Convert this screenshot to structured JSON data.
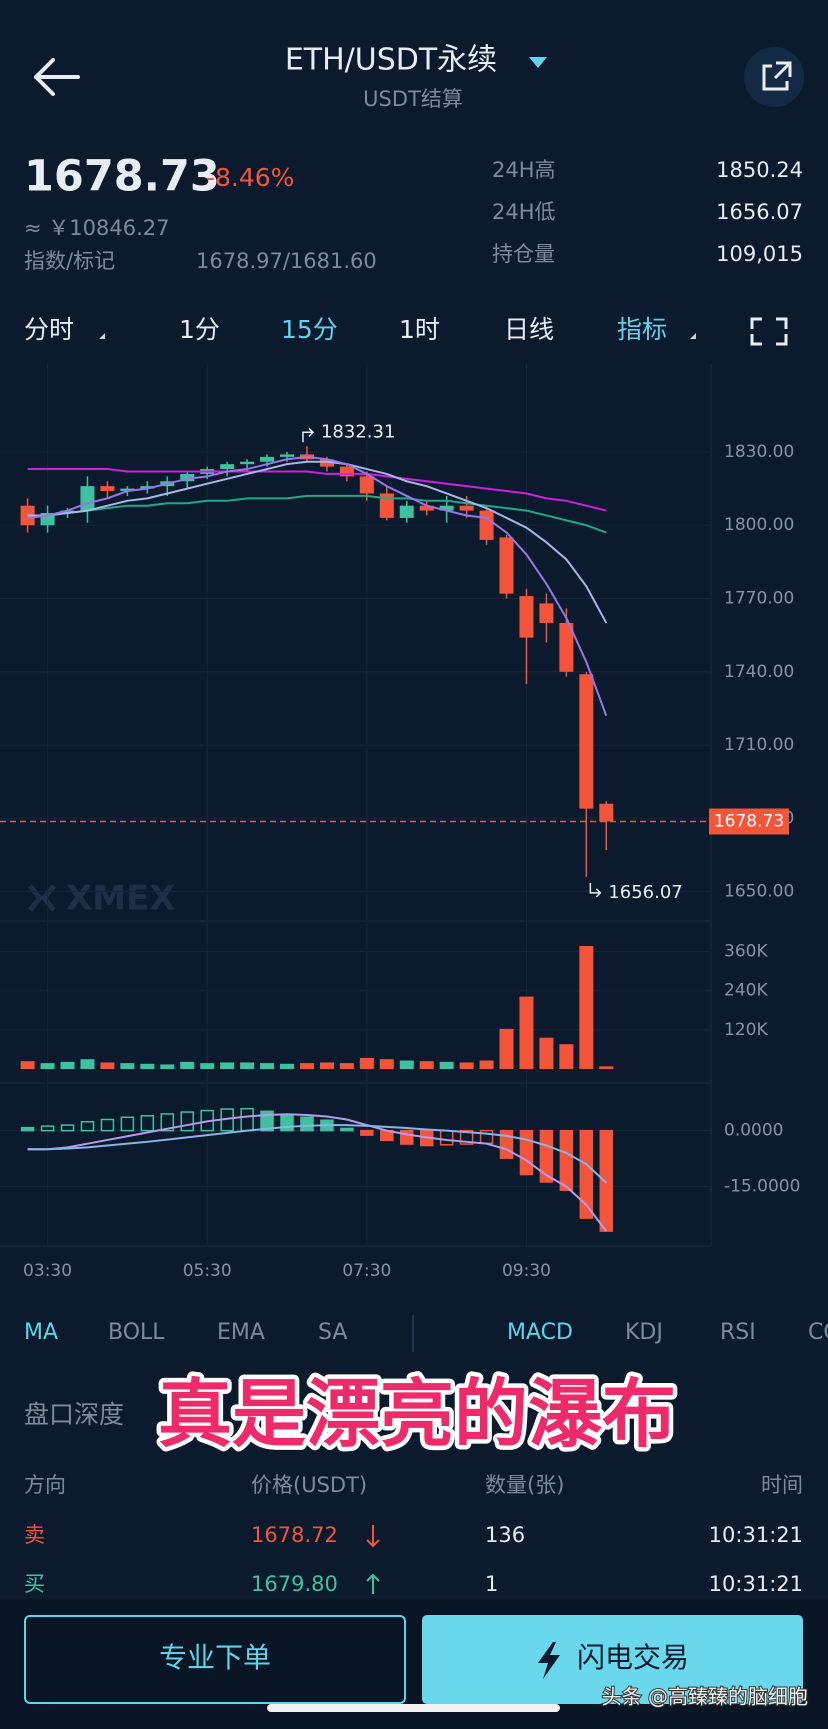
{
  "header": {
    "title": "ETH/USDT永续",
    "subtitle": "USDT结算"
  },
  "ticker": {
    "price": "1678.73",
    "change": "-8.46%",
    "cny": "≈ ￥10846.27",
    "index_label": "指数/标记",
    "index_value": "1678.97/1681.60",
    "stats": [
      {
        "label": "24H高",
        "value": "1850.24"
      },
      {
        "label": "24H低",
        "value": "1656.07"
      },
      {
        "label": "持仓量",
        "value": "109,015"
      }
    ]
  },
  "tabs": [
    "分时",
    "1分",
    "15分",
    "1时",
    "日线",
    "指标"
  ],
  "watermark": "XMEX",
  "chart_data": {
    "type": "candlestick",
    "categories": [
      null,
      "03:30",
      null,
      null,
      null,
      null,
      null,
      null,
      null,
      "05:30",
      null,
      null,
      null,
      null,
      null,
      null,
      null,
      "07:30",
      null,
      null,
      null,
      null,
      null,
      null,
      null,
      "09:30",
      null,
      null,
      null,
      null
    ],
    "open": [
      1808,
      1800,
      1805,
      1806,
      1816,
      1814,
      1815,
      1816,
      1818,
      1821,
      1823,
      1825,
      1826,
      1828,
      1829,
      1827,
      1824,
      1820,
      1813,
      1803,
      1808,
      1806,
      1808,
      1806,
      1795,
      1771,
      1768,
      1760,
      1739,
      1686
    ],
    "high": [
      1811,
      1808,
      1807,
      1820,
      1818,
      1816,
      1818,
      1820,
      1822,
      1824,
      1826,
      1827,
      1829,
      1830,
      1832.31,
      1828,
      1825,
      1822,
      1816,
      1810,
      1810,
      1812,
      1812,
      1808,
      1796,
      1774,
      1772,
      1766,
      1740,
      1687
    ],
    "low": [
      1797,
      1797,
      1803,
      1801,
      1811,
      1812,
      1813,
      1812,
      1815,
      1819,
      1820,
      1822,
      1824,
      1826,
      1826,
      1822,
      1818,
      1810,
      1802,
      1801,
      1804,
      1801,
      1803,
      1792,
      1770,
      1735,
      1752,
      1738,
      1656.07,
      1667
    ],
    "close": [
      1800,
      1805,
      1806,
      1816,
      1814,
      1815,
      1816,
      1818,
      1821,
      1823,
      1825,
      1826,
      1828,
      1829,
      1827,
      1824,
      1820,
      1813,
      1803,
      1808,
      1806,
      1808,
      1806,
      1794,
      1772,
      1754,
      1760,
      1740,
      1684,
      1678.73
    ],
    "up_color": "#3fc1a0",
    "down_color": "#f4553a",
    "ylim": [
      1638,
      1866
    ],
    "yticks": [
      {
        "value": 1650,
        "label": "1650.00"
      },
      {
        "value": 1680,
        "label": "1680.00"
      },
      {
        "value": 1710,
        "label": "1710.00"
      },
      {
        "value": 1740,
        "label": "1740.00"
      },
      {
        "value": 1770,
        "label": "1770.00"
      },
      {
        "value": 1800,
        "label": "1800.00"
      },
      {
        "value": 1830,
        "label": "1830.00"
      }
    ],
    "moving_averages": [
      {
        "color": "#d21ee0",
        "values": [
          1823,
          1823,
          1823,
          1823,
          1823,
          1822,
          1822,
          1822,
          1822,
          1822,
          1822,
          1822,
          1822,
          1822,
          1822,
          1821,
          1821,
          1821,
          1820,
          1819,
          1818,
          1817,
          1816,
          1815,
          1814,
          1813,
          1811,
          1810,
          1808,
          1806
        ]
      },
      {
        "color": "#1fa98a",
        "values": [
          1803,
          1804,
          1805,
          1806,
          1807,
          1808,
          1808,
          1809,
          1809,
          1810,
          1810,
          1811,
          1811,
          1811,
          1812,
          1812,
          1812,
          1812,
          1811,
          1811,
          1810,
          1810,
          1809,
          1808,
          1807,
          1806,
          1804,
          1802,
          1800,
          1797
        ]
      },
      {
        "color": "#a6b8e6",
        "values": [
          1804,
          1804,
          1805,
          1806,
          1808,
          1810,
          1811,
          1813,
          1815,
          1817,
          1819,
          1821,
          1823,
          1825,
          1826,
          1826,
          1825,
          1823,
          1821,
          1818,
          1816,
          1813,
          1810,
          1807,
          1803,
          1799,
          1793,
          1786,
          1775,
          1760
        ]
      },
      {
        "color": "#9b74e8",
        "values": [
          1803,
          1804,
          1806,
          1809,
          1811,
          1814,
          1815,
          1817,
          1819,
          1820,
          1822,
          1823,
          1825,
          1827,
          1828,
          1827,
          1825,
          1821,
          1816,
          1812,
          1808,
          1806,
          1804,
          1803,
          1797,
          1788,
          1776,
          1762,
          1744,
          1722
        ]
      }
    ],
    "volume": {
      "values": [
        24000,
        18000,
        22000,
        30000,
        20000,
        18000,
        16000,
        14000,
        22000,
        18000,
        20000,
        20000,
        18000,
        16000,
        18000,
        20000,
        18000,
        34000,
        30000,
        26000,
        24000,
        22000,
        20000,
        26000,
        123000,
        222000,
        96000,
        76000,
        377000,
        8000
      ],
      "ylim": [
        0,
        420000
      ],
      "yticks": [
        {
          "value": 120000,
          "label": "120K"
        },
        {
          "value": 240000,
          "label": "240K"
        },
        {
          "value": 360000,
          "label": "360K"
        }
      ]
    },
    "macd": {
      "histogram": [
        0.8,
        1.2,
        1.5,
        2.4,
        3.0,
        3.6,
        4.0,
        4.5,
        5.0,
        5.4,
        5.8,
        5.9,
        5.2,
        4.4,
        3.6,
        2.8,
        0.6,
        -1.2,
        -2.6,
        -3.6,
        -4.0,
        -3.8,
        -3.6,
        -3.4,
        -7.4,
        -11.8,
        -13.8,
        -16,
        -23.5,
        -27
      ],
      "dif": {
        "color": "#b69be8",
        "values": [
          -5,
          -5,
          -4.5,
          -3.5,
          -2.5,
          -1.5,
          -0.5,
          0.5,
          1.5,
          2.5,
          3.2,
          3.8,
          4.2,
          4.4,
          4.2,
          3.8,
          3,
          1.5,
          0,
          -1,
          -1.8,
          -2.5,
          -3,
          -3.5,
          -5,
          -8,
          -12,
          -15,
          -20,
          -27
        ]
      },
      "dea": {
        "color": "#8bb3e6",
        "values": [
          -5,
          -5,
          -4.8,
          -4.5,
          -4,
          -3.5,
          -3,
          -2.4,
          -1.8,
          -1.2,
          -0.6,
          0,
          0.5,
          1,
          1.3,
          1.5,
          1.5,
          1.3,
          1,
          0.7,
          0.3,
          0,
          -0.4,
          -0.8,
          -1.4,
          -2.4,
          -4,
          -6,
          -9,
          -14
        ]
      },
      "ylim": [
        -31,
        12
      ],
      "yticks": [
        {
          "value": -15,
          "label": "-15.0000"
        },
        {
          "value": 0,
          "label": "0.0000"
        }
      ]
    }
  },
  "indicator_tabs": {
    "main": [
      "MA",
      "BOLL",
      "EMA",
      "SA"
    ],
    "sub": [
      "MACD",
      "KDJ",
      "RSI",
      "CC"
    ]
  },
  "caption": "真是漂亮的瀑布",
  "depth_title": "盘口深度",
  "trades": {
    "headers": [
      "方向",
      "价格(USDT)",
      "数量(张)",
      "时间"
    ],
    "rows": [
      [
        "卖",
        "1678.72",
        "136",
        "10:31:21"
      ],
      [
        "买",
        "1679.80",
        "1",
        "10:31:21"
      ]
    ]
  },
  "buttons": [
    "专业下单",
    "闪电交易"
  ],
  "credit": "头条 @高臻臻的脑细胞"
}
